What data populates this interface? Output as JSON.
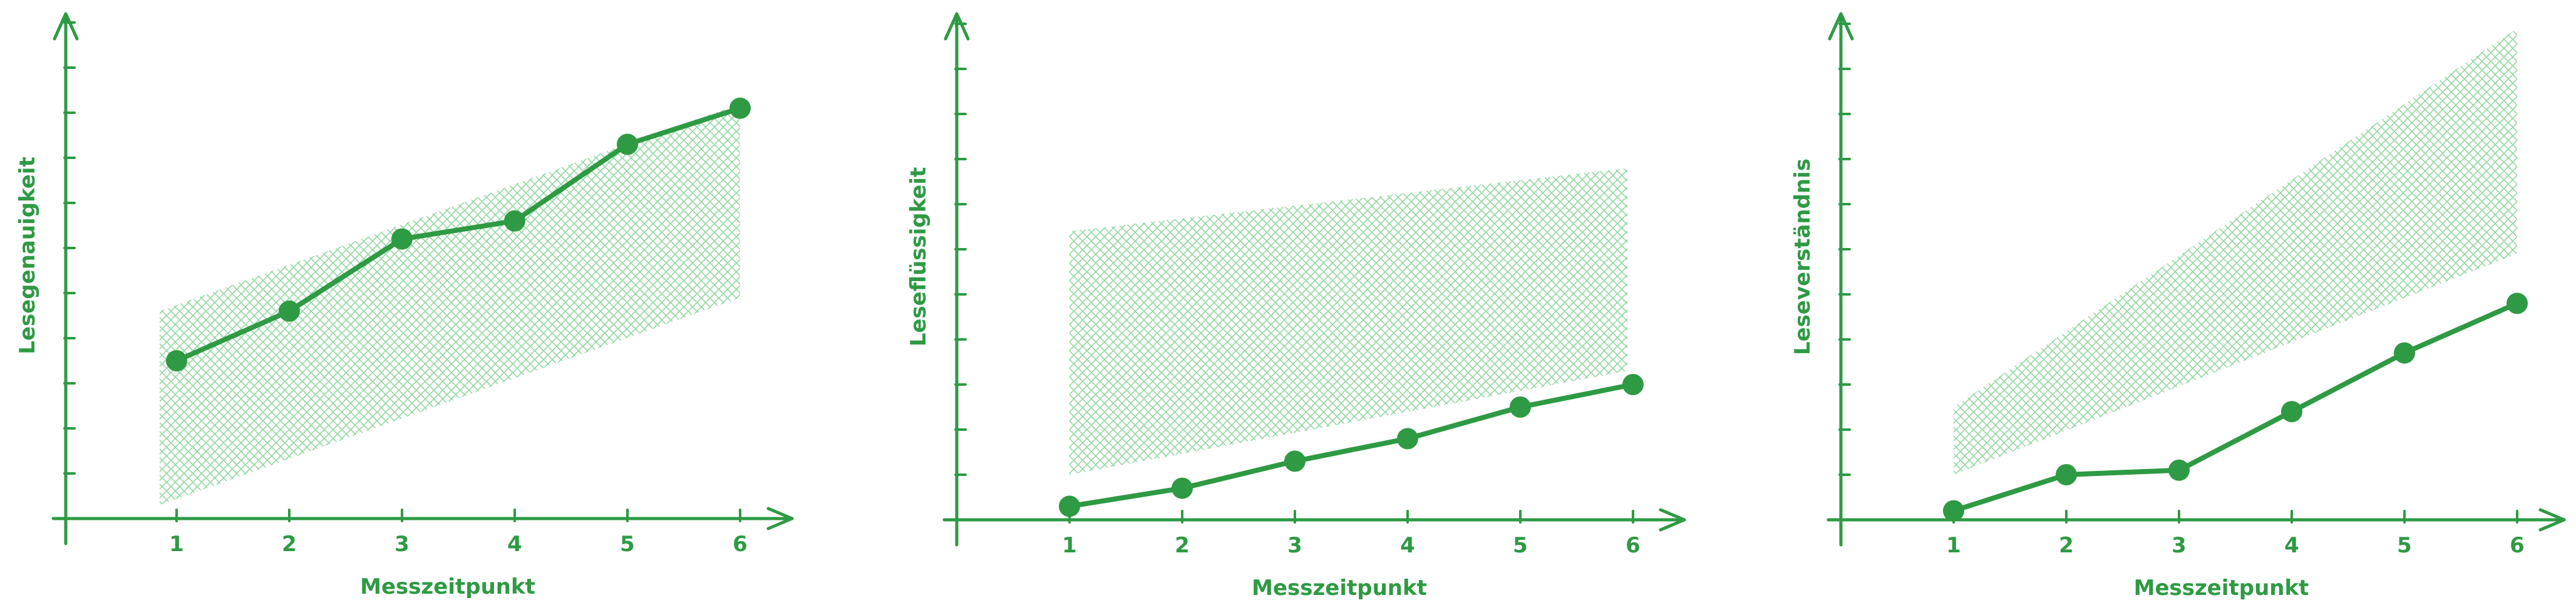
{
  "colors": {
    "line": "#2e9a43",
    "band": "#7fcf8f",
    "axis": "#2e9a43"
  },
  "chart_data": [
    {
      "type": "line",
      "xlabel": "Messzeitpunkt",
      "ylabel": "Lesegenauigkeit",
      "x": [
        1,
        2,
        3,
        4,
        5,
        6
      ],
      "xtick_labels": [
        "1",
        "2",
        "3",
        "4",
        "5",
        "6"
      ],
      "ylim": [
        0,
        11
      ],
      "grid": false,
      "series": [
        {
          "values": [
            3.5,
            4.6,
            6.2,
            6.6,
            8.3,
            9.1
          ]
        }
      ],
      "band": {
        "x": [
          0.85,
          6.0
        ],
        "lower": [
          0.3,
          4.9
        ],
        "upper": [
          4.6,
          9.2
        ]
      }
    },
    {
      "type": "line",
      "xlabel": "Messzeitpunkt",
      "ylabel": "Leseflüssigkeit",
      "x": [
        1,
        2,
        3,
        4,
        5,
        6
      ],
      "xtick_labels": [
        "1",
        "2",
        "3",
        "4",
        "5",
        "6"
      ],
      "ylim": [
        0,
        11
      ],
      "grid": false,
      "series": [
        {
          "values": [
            0.3,
            0.7,
            1.3,
            1.8,
            2.5,
            3.0
          ]
        }
      ],
      "band": {
        "x": [
          1.0,
          5.95
        ],
        "lower": [
          1.0,
          3.3
        ],
        "upper": [
          6.4,
          7.8
        ]
      }
    },
    {
      "type": "line",
      "xlabel": "Messzeitpunkt",
      "ylabel": "Leseverständnis",
      "x": [
        1,
        2,
        3,
        4,
        5,
        6
      ],
      "xtick_labels": [
        "1",
        "2",
        "3",
        "4",
        "5",
        "6"
      ],
      "ylim": [
        0,
        11
      ],
      "grid": false,
      "series": [
        {
          "values": [
            0.2,
            1.0,
            1.1,
            2.4,
            3.7,
            4.8
          ]
        }
      ],
      "band": {
        "x": [
          1.0,
          6.0
        ],
        "lower": [
          1.0,
          5.9
        ],
        "upper": [
          2.5,
          10.9
        ]
      }
    }
  ]
}
